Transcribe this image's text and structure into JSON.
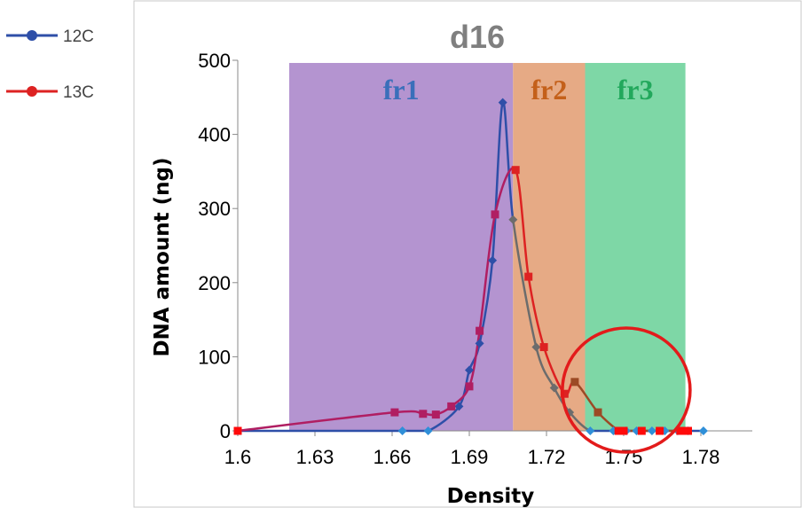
{
  "chart_data": {
    "type": "line",
    "title": "d16",
    "xlabel": "Density",
    "ylabel": "DNA amount (ng)",
    "xlim": [
      1.6,
      1.8
    ],
    "ylim": [
      0,
      500
    ],
    "x_ticks": [
      1.6,
      1.63,
      1.66,
      1.69,
      1.72,
      1.75,
      1.78
    ],
    "x_tick_labels": [
      "1.6",
      "1.63",
      "1.66",
      "1.69",
      "1.72",
      "1.75",
      "1.78"
    ],
    "y_ticks": [
      0,
      100,
      200,
      300,
      400,
      500
    ],
    "y_tick_labels": [
      "0",
      "100",
      "200",
      "300",
      "400",
      "500"
    ],
    "grid": false,
    "legend_position": "left",
    "regions": [
      {
        "label": "fr1",
        "x_start": 1.62,
        "x_end": 1.707,
        "fill": "#b494d0",
        "text_color": "#3a6fba"
      },
      {
        "label": "fr2",
        "x_start": 1.707,
        "x_end": 1.735,
        "fill": "#e6aa85",
        "text_color": "#c4601a"
      },
      {
        "label": "fr3",
        "x_start": 1.735,
        "x_end": 1.774,
        "fill": "#7ed7a6",
        "text_color": "#22a85c"
      }
    ],
    "series": [
      {
        "name": "12C",
        "color": "#2e4fa8",
        "late_color": "#6c6c6c",
        "marker": "diamond",
        "x": [
          1.6,
          1.664,
          1.674,
          1.686,
          1.69,
          1.694,
          1.699,
          1.703,
          1.707,
          1.716,
          1.723,
          1.729,
          1.737,
          1.746,
          1.751,
          1.755,
          1.761,
          1.766,
          1.771,
          1.775,
          1.781
        ],
        "y": [
          0,
          0,
          0,
          33,
          82,
          118,
          230,
          443,
          285,
          113,
          58,
          25,
          0,
          0,
          0,
          0,
          0,
          0,
          0,
          0,
          0
        ]
      },
      {
        "name": "13C",
        "color": "#dd2222",
        "early_color": "#b01e62",
        "late_color": "#9c4a25",
        "marker": "square",
        "x": [
          1.6,
          1.661,
          1.672,
          1.677,
          1.683,
          1.69,
          1.694,
          1.7,
          1.708,
          1.713,
          1.719,
          1.727,
          1.731,
          1.74,
          1.748,
          1.75,
          1.757,
          1.764,
          1.772,
          1.775
        ],
        "y": [
          0,
          25,
          23,
          22,
          33,
          60,
          135,
          292,
          352,
          208,
          113,
          50,
          66,
          25,
          0,
          0,
          0,
          0,
          0,
          0
        ]
      }
    ],
    "highlight": {
      "shape": "circle",
      "color": "#e31b1b",
      "x_center": 1.751,
      "y_center": 55
    }
  },
  "legend": [
    {
      "name": "12C",
      "color": "#2e4fa8",
      "marker": "circle"
    },
    {
      "name": "13C",
      "color": "#dd2222",
      "marker": "circle"
    }
  ]
}
